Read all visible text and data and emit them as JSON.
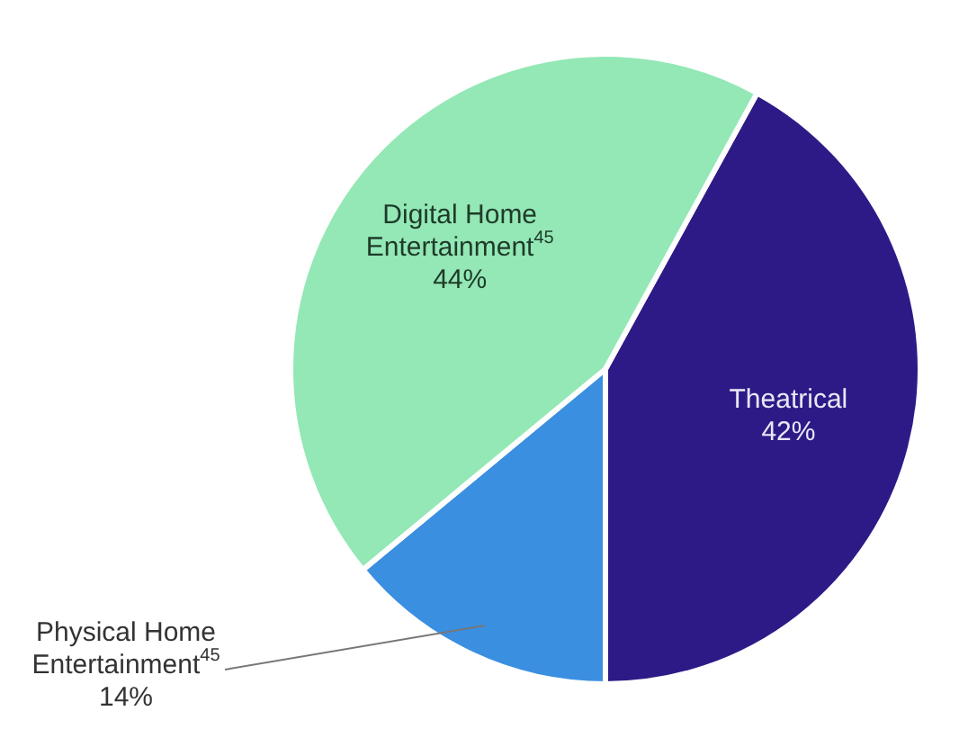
{
  "chart_data": {
    "type": "pie",
    "legend": false,
    "categories": [
      "Theatrical",
      "Physical Home Entertainment$^{45}$",
      "Digital Home Entertainment$^{45}$"
    ],
    "values": [
      42,
      14,
      44
    ],
    "colors": [
      "#2e1a87",
      "#3b8fe0",
      "#93e8b5"
    ],
    "value_labels": [
      "42%",
      "14%",
      "44%"
    ]
  }
}
